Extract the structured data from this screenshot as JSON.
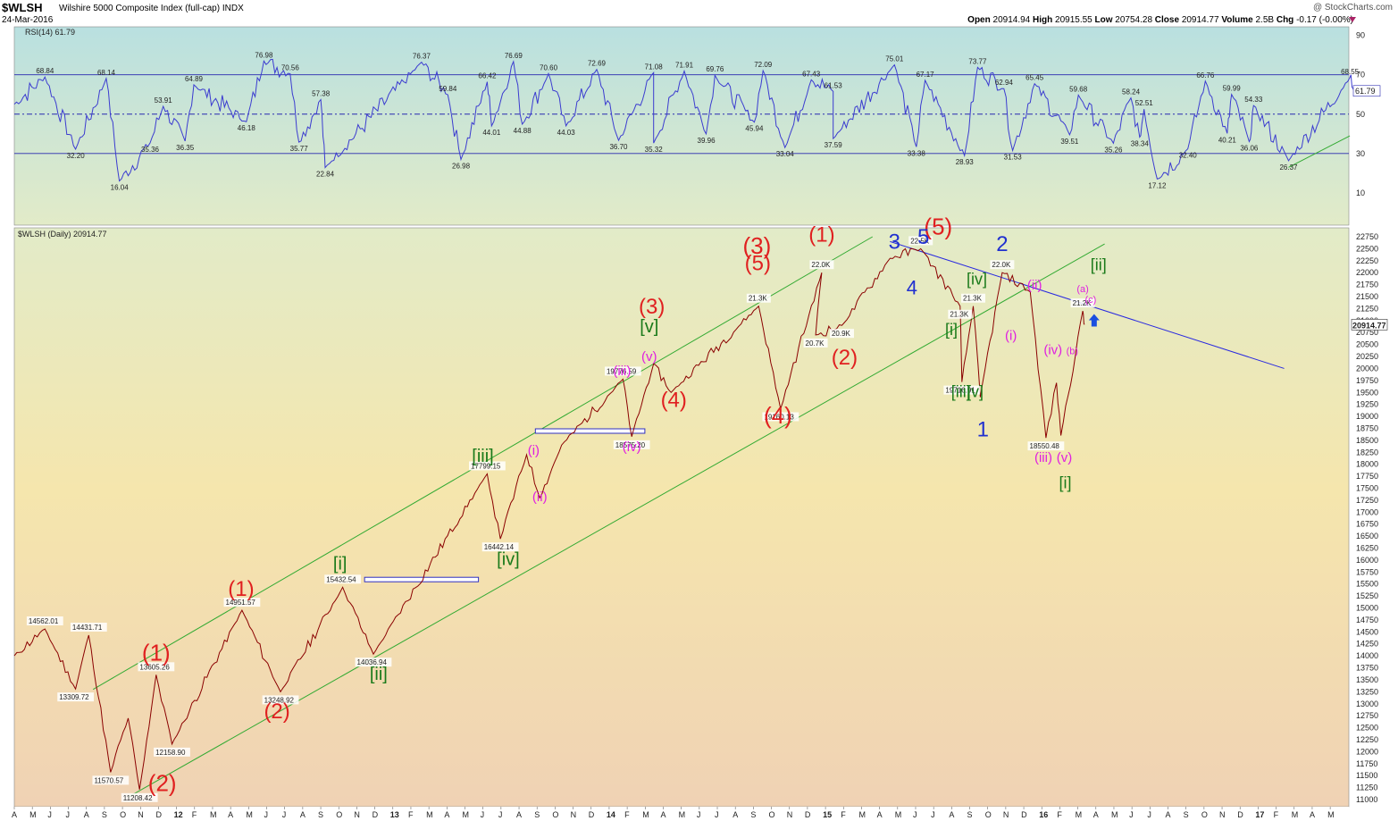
{
  "header": {
    "symbol": "$WLSH",
    "index_name": "Wilshire 5000 Composite Index (full-cap)",
    "exchange": "INDX",
    "date": "24-Mar-2016",
    "open_label": "Open",
    "open": "20914.94",
    "high_label": "High",
    "high": "20915.55",
    "low_label": "Low",
    "low": "20754.28",
    "close_label": "Close",
    "close": "20914.77",
    "volume_label": "Volume",
    "volume": "2.5B",
    "chg_label": "Chg",
    "chg": "-0.17 (-0.00%)",
    "source": "@ StockCharts.com"
  },
  "chart_data": [
    {
      "type": "line",
      "panel": "rsi",
      "title": "RSI(14) 61.79",
      "series": [
        {
          "name": "RSI(14)",
          "color": "#3b3bd0"
        }
      ],
      "ylim": [
        0,
        100
      ],
      "yticks": [
        "10",
        "30",
        "50",
        "70",
        "90"
      ],
      "reference_lines": [
        30,
        50,
        70
      ],
      "last_value": "61.79",
      "colors": {
        "bg_top": "#b9e0e0",
        "bg_bottom": "#e2ebc8",
        "line": "#3b3bd0"
      },
      "peaks": [
        {
          "x": 0.035,
          "y": 68.84,
          "label": "68.84"
        },
        {
          "x": 0.105,
          "y": 68.14,
          "label": "68.14"
        },
        {
          "x": 0.17,
          "y": 53.91,
          "label": "53.91"
        },
        {
          "x": 0.205,
          "y": 64.89,
          "label": "64.89"
        },
        {
          "x": 0.285,
          "y": 76.98,
          "label": "76.98"
        },
        {
          "x": 0.315,
          "y": 70.56,
          "label": "70.56"
        },
        {
          "x": 0.35,
          "y": 57.38,
          "label": "57.38"
        },
        {
          "x": 0.465,
          "y": 76.37,
          "label": "76.37"
        },
        {
          "x": 0.495,
          "y": 59.84,
          "label": "59.84"
        },
        {
          "x": 0.54,
          "y": 66.42,
          "label": "66.42"
        },
        {
          "x": 0.57,
          "y": 76.69,
          "label": "76.69"
        },
        {
          "x": 0.61,
          "y": 70.6,
          "label": "70.60"
        },
        {
          "x": 0.665,
          "y": 72.69,
          "label": "72.69"
        },
        {
          "x": 0.73,
          "y": 71.08,
          "label": "71.08"
        },
        {
          "x": 0.765,
          "y": 71.91,
          "label": "71.91"
        },
        {
          "x": 0.8,
          "y": 69.76,
          "label": "69.76"
        },
        {
          "x": 0.855,
          "y": 72.09,
          "label": "72.09"
        },
        {
          "x": 0.91,
          "y": 67.43,
          "label": "67.43"
        },
        {
          "x": 0.935,
          "y": 61.53,
          "label": "61.53"
        },
        {
          "x": 1.005,
          "y": 75.01,
          "label": "75.01"
        },
        {
          "x": 1.04,
          "y": 67.17,
          "label": "67.17"
        },
        {
          "x": 1.1,
          "y": 73.77,
          "label": "73.77"
        },
        {
          "x": 1.13,
          "y": 62.94,
          "label": "62.94"
        },
        {
          "x": 1.165,
          "y": 65.45,
          "label": "65.45"
        },
        {
          "x": 1.215,
          "y": 59.68,
          "label": "59.68"
        },
        {
          "x": 1.275,
          "y": 58.24,
          "label": "58.24"
        },
        {
          "x": 1.29,
          "y": 52.51,
          "label": "52.51"
        },
        {
          "x": 1.36,
          "y": 66.76,
          "label": "66.76"
        },
        {
          "x": 1.39,
          "y": 59.99,
          "label": "59.99"
        },
        {
          "x": 1.415,
          "y": 54.33,
          "label": "54.33"
        },
        {
          "x": 1.525,
          "y": 68.55,
          "label": "68.55"
        }
      ],
      "troughs": [
        {
          "x": 0.07,
          "y": 32.2,
          "label": "32.20"
        },
        {
          "x": 0.12,
          "y": 16.04,
          "label": "16.04"
        },
        {
          "x": 0.155,
          "y": 35.36,
          "label": "35.36"
        },
        {
          "x": 0.195,
          "y": 36.35,
          "label": "36.35"
        },
        {
          "x": 0.265,
          "y": 46.18,
          "label": "46.18"
        },
        {
          "x": 0.325,
          "y": 35.77,
          "label": "35.77"
        },
        {
          "x": 0.355,
          "y": 22.84,
          "label": "22.84"
        },
        {
          "x": 0.51,
          "y": 26.98,
          "label": "26.98"
        },
        {
          "x": 0.545,
          "y": 44.01,
          "label": "44.01"
        },
        {
          "x": 0.58,
          "y": 44.88,
          "label": "44.88"
        },
        {
          "x": 0.63,
          "y": 44.03,
          "label": "44.03"
        },
        {
          "x": 0.69,
          "y": 36.7,
          "label": "36.70"
        },
        {
          "x": 0.73,
          "y": 35.32,
          "label": "35.32"
        },
        {
          "x": 0.79,
          "y": 39.96,
          "label": "39.96"
        },
        {
          "x": 0.845,
          "y": 45.94,
          "label": "45.94"
        },
        {
          "x": 0.88,
          "y": 33.04,
          "label": "33.04"
        },
        {
          "x": 0.935,
          "y": 37.59,
          "label": "37.59"
        },
        {
          "x": 1.03,
          "y": 33.38,
          "label": "33.38"
        },
        {
          "x": 1.085,
          "y": 28.93,
          "label": "28.93"
        },
        {
          "x": 1.14,
          "y": 31.53,
          "label": "31.53"
        },
        {
          "x": 1.205,
          "y": 39.51,
          "label": "39.51"
        },
        {
          "x": 1.255,
          "y": 35.26,
          "label": "35.26"
        },
        {
          "x": 1.285,
          "y": 38.34,
          "label": "38.34"
        },
        {
          "x": 1.305,
          "y": 17.12,
          "label": "17.12"
        },
        {
          "x": 1.34,
          "y": 32.4,
          "label": "32.40"
        },
        {
          "x": 1.385,
          "y": 40.21,
          "label": "40.21"
        },
        {
          "x": 1.41,
          "y": 36.06,
          "label": "36.06"
        },
        {
          "x": 1.455,
          "y": 26.37,
          "label": "26.37"
        }
      ]
    },
    {
      "type": "line",
      "panel": "price",
      "title": "$WLSH (Daily) 20914.77",
      "series": [
        {
          "name": "$WLSH (Daily)",
          "color": "#8a0000"
        }
      ],
      "ylim": [
        11000,
        22750
      ],
      "ytick_step": 250,
      "last_value": "20914.77",
      "colors": {
        "bg_top": "#e2ebc8",
        "bg_mid": "#f5e6ad",
        "bg_bottom": "#f0d2b4",
        "line": "#8a0000",
        "channel": "#33aa33",
        "trendline": "#2828e0"
      },
      "xlabels": [
        "A",
        "M",
        "J",
        "J",
        "A",
        "S",
        "O",
        "N",
        "D",
        "12",
        "F",
        "M",
        "A",
        "M",
        "J",
        "J",
        "A",
        "S",
        "O",
        "N",
        "D",
        "13",
        "F",
        "M",
        "A",
        "M",
        "J",
        "J",
        "A",
        "S",
        "O",
        "N",
        "D",
        "14",
        "F",
        "M",
        "A",
        "M",
        "J",
        "J",
        "A",
        "S",
        "O",
        "N",
        "D",
        "15",
        "F",
        "M",
        "A",
        "M",
        "J",
        "J",
        "A",
        "S",
        "O",
        "N",
        "D",
        "16",
        "F",
        "M",
        "A",
        "M",
        "J",
        "J",
        "A",
        "S",
        "O",
        "N",
        "D",
        "17",
        "F",
        "M",
        "A",
        "M"
      ],
      "pivots": [
        {
          "x": 0.0,
          "y": 14000
        },
        {
          "x": 0.035,
          "y": 14562.01,
          "label": "14562.01"
        },
        {
          "x": 0.07,
          "y": 13309.72,
          "label": "13309.72"
        },
        {
          "x": 0.085,
          "y": 14431.71,
          "label": "14431.71"
        },
        {
          "x": 0.11,
          "y": 11570.57,
          "label": "11570.57"
        },
        {
          "x": 0.13,
          "y": 12700
        },
        {
          "x": 0.143,
          "y": 11208.42,
          "label": "11208.42"
        },
        {
          "x": 0.162,
          "y": 13605.26,
          "label": "13605.26"
        },
        {
          "x": 0.18,
          "y": 12158.9,
          "label": "12158.90"
        },
        {
          "x": 0.26,
          "y": 14951.57,
          "label": "14951.57"
        },
        {
          "x": 0.304,
          "y": 13248.92,
          "label": "13248.92"
        },
        {
          "x": 0.375,
          "y": 15432.54,
          "label": "15432.54"
        },
        {
          "x": 0.41,
          "y": 14036.94,
          "label": "14036.94"
        },
        {
          "x": 0.54,
          "y": 17799.15,
          "label": "17799.15"
        },
        {
          "x": 0.555,
          "y": 16442.14,
          "label": "16442.14"
        },
        {
          "x": 0.585,
          "y": 18200
        },
        {
          "x": 0.6,
          "y": 17300
        },
        {
          "x": 0.625,
          "y": 18400
        },
        {
          "x": 0.695,
          "y": 19776.59,
          "label": "19776.59"
        },
        {
          "x": 0.705,
          "y": 18575.2,
          "label": "18575.20"
        },
        {
          "x": 0.73,
          "y": 20100
        },
        {
          "x": 0.75,
          "y": 19500
        },
        {
          "x": 0.85,
          "y": 21300,
          "label": "21.3K"
        },
        {
          "x": 0.875,
          "y": 19160.13,
          "label": "19160.13"
        },
        {
          "x": 0.922,
          "y": 22000,
          "label": "22.0K"
        },
        {
          "x": 0.915,
          "y": 20700,
          "label": "20.7K"
        },
        {
          "x": 0.945,
          "y": 20900,
          "label": "20.9K"
        },
        {
          "x": 1.0,
          "y": 22300
        },
        {
          "x": 1.035,
          "y": 22500,
          "label": "22.5K"
        },
        {
          "x": 1.08,
          "y": 21300,
          "label": "21.3K"
        },
        {
          "x": 1.082,
          "y": 19716.91,
          "label": "19716.91"
        },
        {
          "x": 1.095,
          "y": 21300,
          "label": "21.3K"
        },
        {
          "x": 1.103,
          "y": 19400
        },
        {
          "x": 1.128,
          "y": 22000,
          "label": "22.0K"
        },
        {
          "x": 1.16,
          "y": 21600
        },
        {
          "x": 1.178,
          "y": 18550.48,
          "label": "18550.48"
        },
        {
          "x": 1.19,
          "y": 19700
        },
        {
          "x": 1.195,
          "y": 18600
        },
        {
          "x": 1.22,
          "y": 21200,
          "label": "21.2K"
        },
        {
          "x": 1.222,
          "y": 20914.77
        }
      ],
      "annotations": [
        {
          "text": "(1)",
          "color": "#e02020"
        },
        {
          "text": "(2)",
          "color": "#e02020"
        },
        {
          "text": "(3)",
          "color": "#e02020"
        },
        {
          "text": "(4)",
          "color": "#e02020"
        },
        {
          "text": "(5)",
          "color": "#e02020"
        },
        {
          "text": "1",
          "color": "#2030d0"
        },
        {
          "text": "2",
          "color": "#2030d0"
        },
        {
          "text": "3",
          "color": "#2030d0"
        },
        {
          "text": "4",
          "color": "#2030d0"
        },
        {
          "text": "5",
          "color": "#2030d0"
        },
        {
          "text": "[i]",
          "color": "#1a7a1a"
        },
        {
          "text": "[ii]",
          "color": "#1a7a1a"
        },
        {
          "text": "[iii]",
          "color": "#1a7a1a"
        },
        {
          "text": "[iv]",
          "color": "#1a7a1a"
        },
        {
          "text": "[v]",
          "color": "#1a7a1a"
        },
        {
          "text": "(i)",
          "color": "#e020e0"
        },
        {
          "text": "(ii)",
          "color": "#e020e0"
        },
        {
          "text": "(iii)",
          "color": "#e020e0"
        },
        {
          "text": "(iv)",
          "color": "#e020e0"
        },
        {
          "text": "(v)",
          "color": "#e020e0"
        },
        {
          "text": "(a)",
          "color": "#e020e0"
        },
        {
          "text": "(b)",
          "color": "#e020e0"
        },
        {
          "text": "(c)",
          "color": "#e020e0"
        }
      ]
    }
  ]
}
